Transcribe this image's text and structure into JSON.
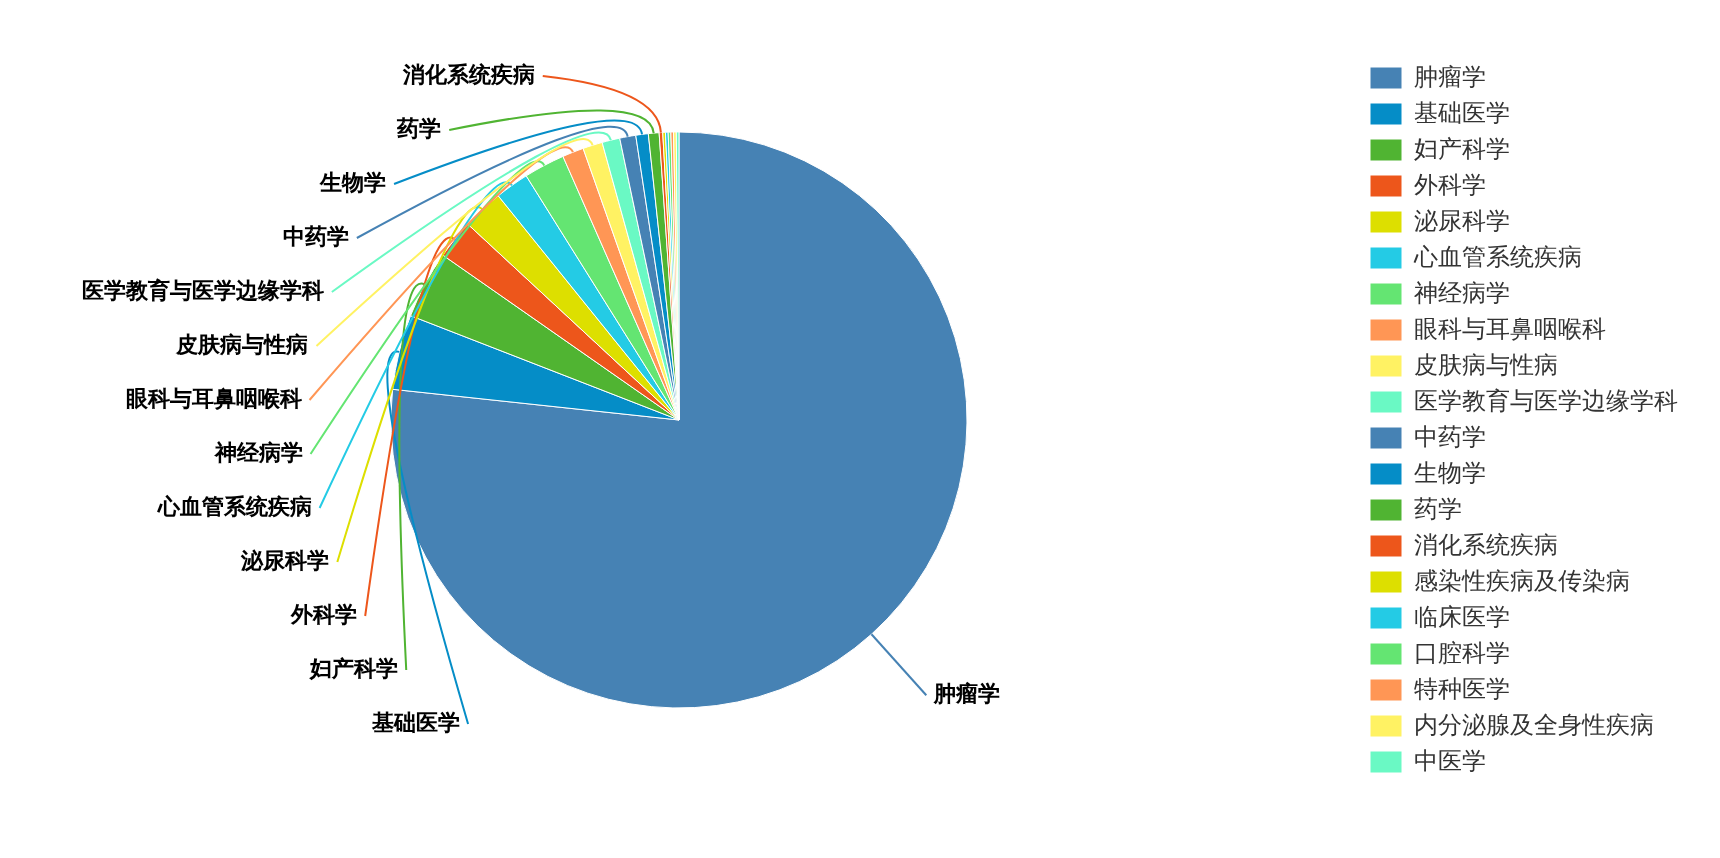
{
  "chart_data": {
    "type": "pie",
    "categories": [
      "肿瘤学",
      "基础医学",
      "妇产科学",
      "外科学",
      "泌尿科学",
      "心血管系统疾病",
      "神经病学",
      "眼科与耳鼻咽喉科",
      "皮肤病与性病",
      "医学教育与医学边缘学科",
      "中药学",
      "生物学",
      "药学",
      "消化系统疾病",
      "感染性疾病及传染病",
      "临床医学",
      "口腔科学",
      "特种医学",
      "内分泌腺及全身性疾病",
      "中医学"
    ],
    "values": [
      76.7,
      4.2,
      3.8,
      2.2,
      2.3,
      1.9,
      2.3,
      1.2,
      1.1,
      1.0,
      0.9,
      0.7,
      0.6,
      0.2,
      0.15,
      0.15,
      0.15,
      0.15,
      0.15,
      0.15
    ],
    "colors": [
      "#4682b4",
      "#058dc7",
      "#50b432",
      "#ed561b",
      "#dddf00",
      "#24cbe5",
      "#64e572",
      "#ff9655",
      "#fff263",
      "#6af9c4",
      "#4682b4",
      "#058dc7",
      "#50b432",
      "#ed561b",
      "#dddf00",
      "#24cbe5",
      "#64e572",
      "#ff9655",
      "#fff263",
      "#6af9c4"
    ],
    "value_labels": [
      "肿瘤学",
      "基础医学",
      "妇产科学",
      "外科学",
      "泌尿科学",
      "心血管系统疾病",
      "神经病学",
      "眼科与耳鼻咽喉科",
      "皮肤病与性病",
      "医学教育与医学边缘学科",
      "中药学",
      "生物学",
      "药学",
      "消化系统疾病",
      null,
      null,
      null,
      null,
      null,
      null
    ],
    "legend": "right"
  }
}
